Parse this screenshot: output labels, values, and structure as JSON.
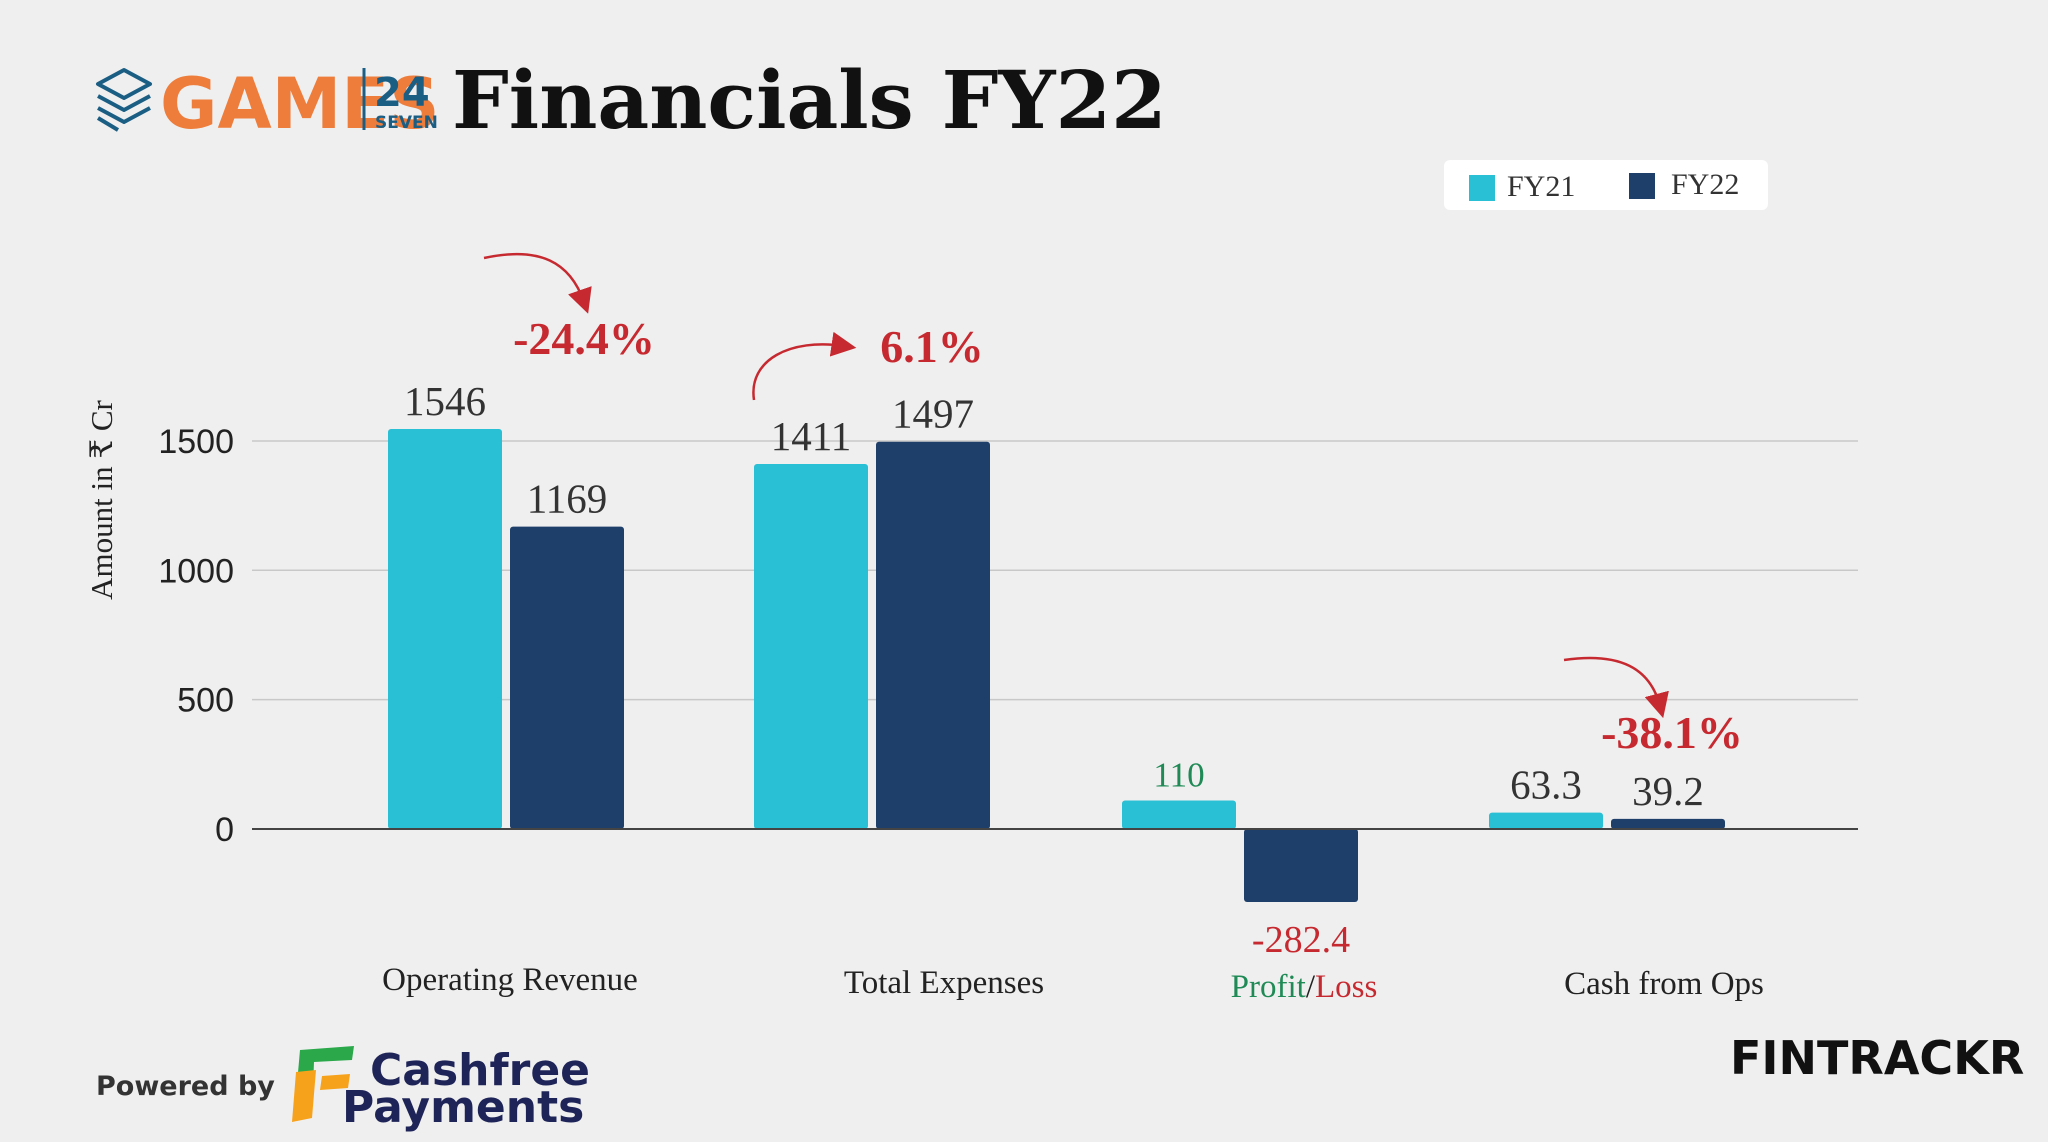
{
  "header": {
    "brand_word": "GAMES",
    "brand_number": "24",
    "brand_sub": "SEVEN",
    "title": "Financials FY22"
  },
  "colors": {
    "background": "#efefef",
    "fy21": "#29bfd4",
    "fy22": "#1f3f6b",
    "brand_orange": "#ee7d3b",
    "brand_blue": "#1b5e84",
    "negative": "#c62a30",
    "positive": "#1f8a55",
    "text_dark": "#333333",
    "cashfree_green": "#2aa84a",
    "cashfree_orange": "#f7a21b",
    "cashfree_navy": "#1e2457"
  },
  "chart_data": {
    "type": "bar",
    "title": "Financials FY22",
    "ylabel": "Amount in ₹ Cr",
    "xlabel": "",
    "ylim": [
      -300,
      1700
    ],
    "yticks": [
      0,
      500,
      1000,
      1500
    ],
    "grid": true,
    "legend_position": "top-right",
    "categories": [
      "Operating Revenue",
      "Total Expenses",
      "Profit/Loss",
      "Cash from Ops"
    ],
    "series": [
      {
        "name": "FY21",
        "values": [
          1546,
          1411,
          110,
          63.3
        ],
        "labels": [
          "1546",
          "1411",
          "110",
          "63.3"
        ]
      },
      {
        "name": "FY22",
        "values": [
          1169,
          1497,
          -282.4,
          39.2
        ],
        "labels": [
          "1169",
          "1497",
          "-282.4",
          "39.2"
        ]
      }
    ],
    "changes": [
      {
        "category": "Operating Revenue",
        "label": "-24.4%",
        "direction": "down"
      },
      {
        "category": "Total Expenses",
        "label": "6.1%",
        "direction": "up"
      },
      {
        "category": "Cash from Ops",
        "label": "-38.1%",
        "direction": "down"
      }
    ],
    "profit_loss_label": {
      "profit": "Profit",
      "separator": "/",
      "loss": "Loss"
    }
  },
  "footer": {
    "powered_by": "Powered by",
    "cashfree_line1": "Cashfree",
    "cashfree_line2": "Payments",
    "fintrackr": "FINTRACKR"
  }
}
